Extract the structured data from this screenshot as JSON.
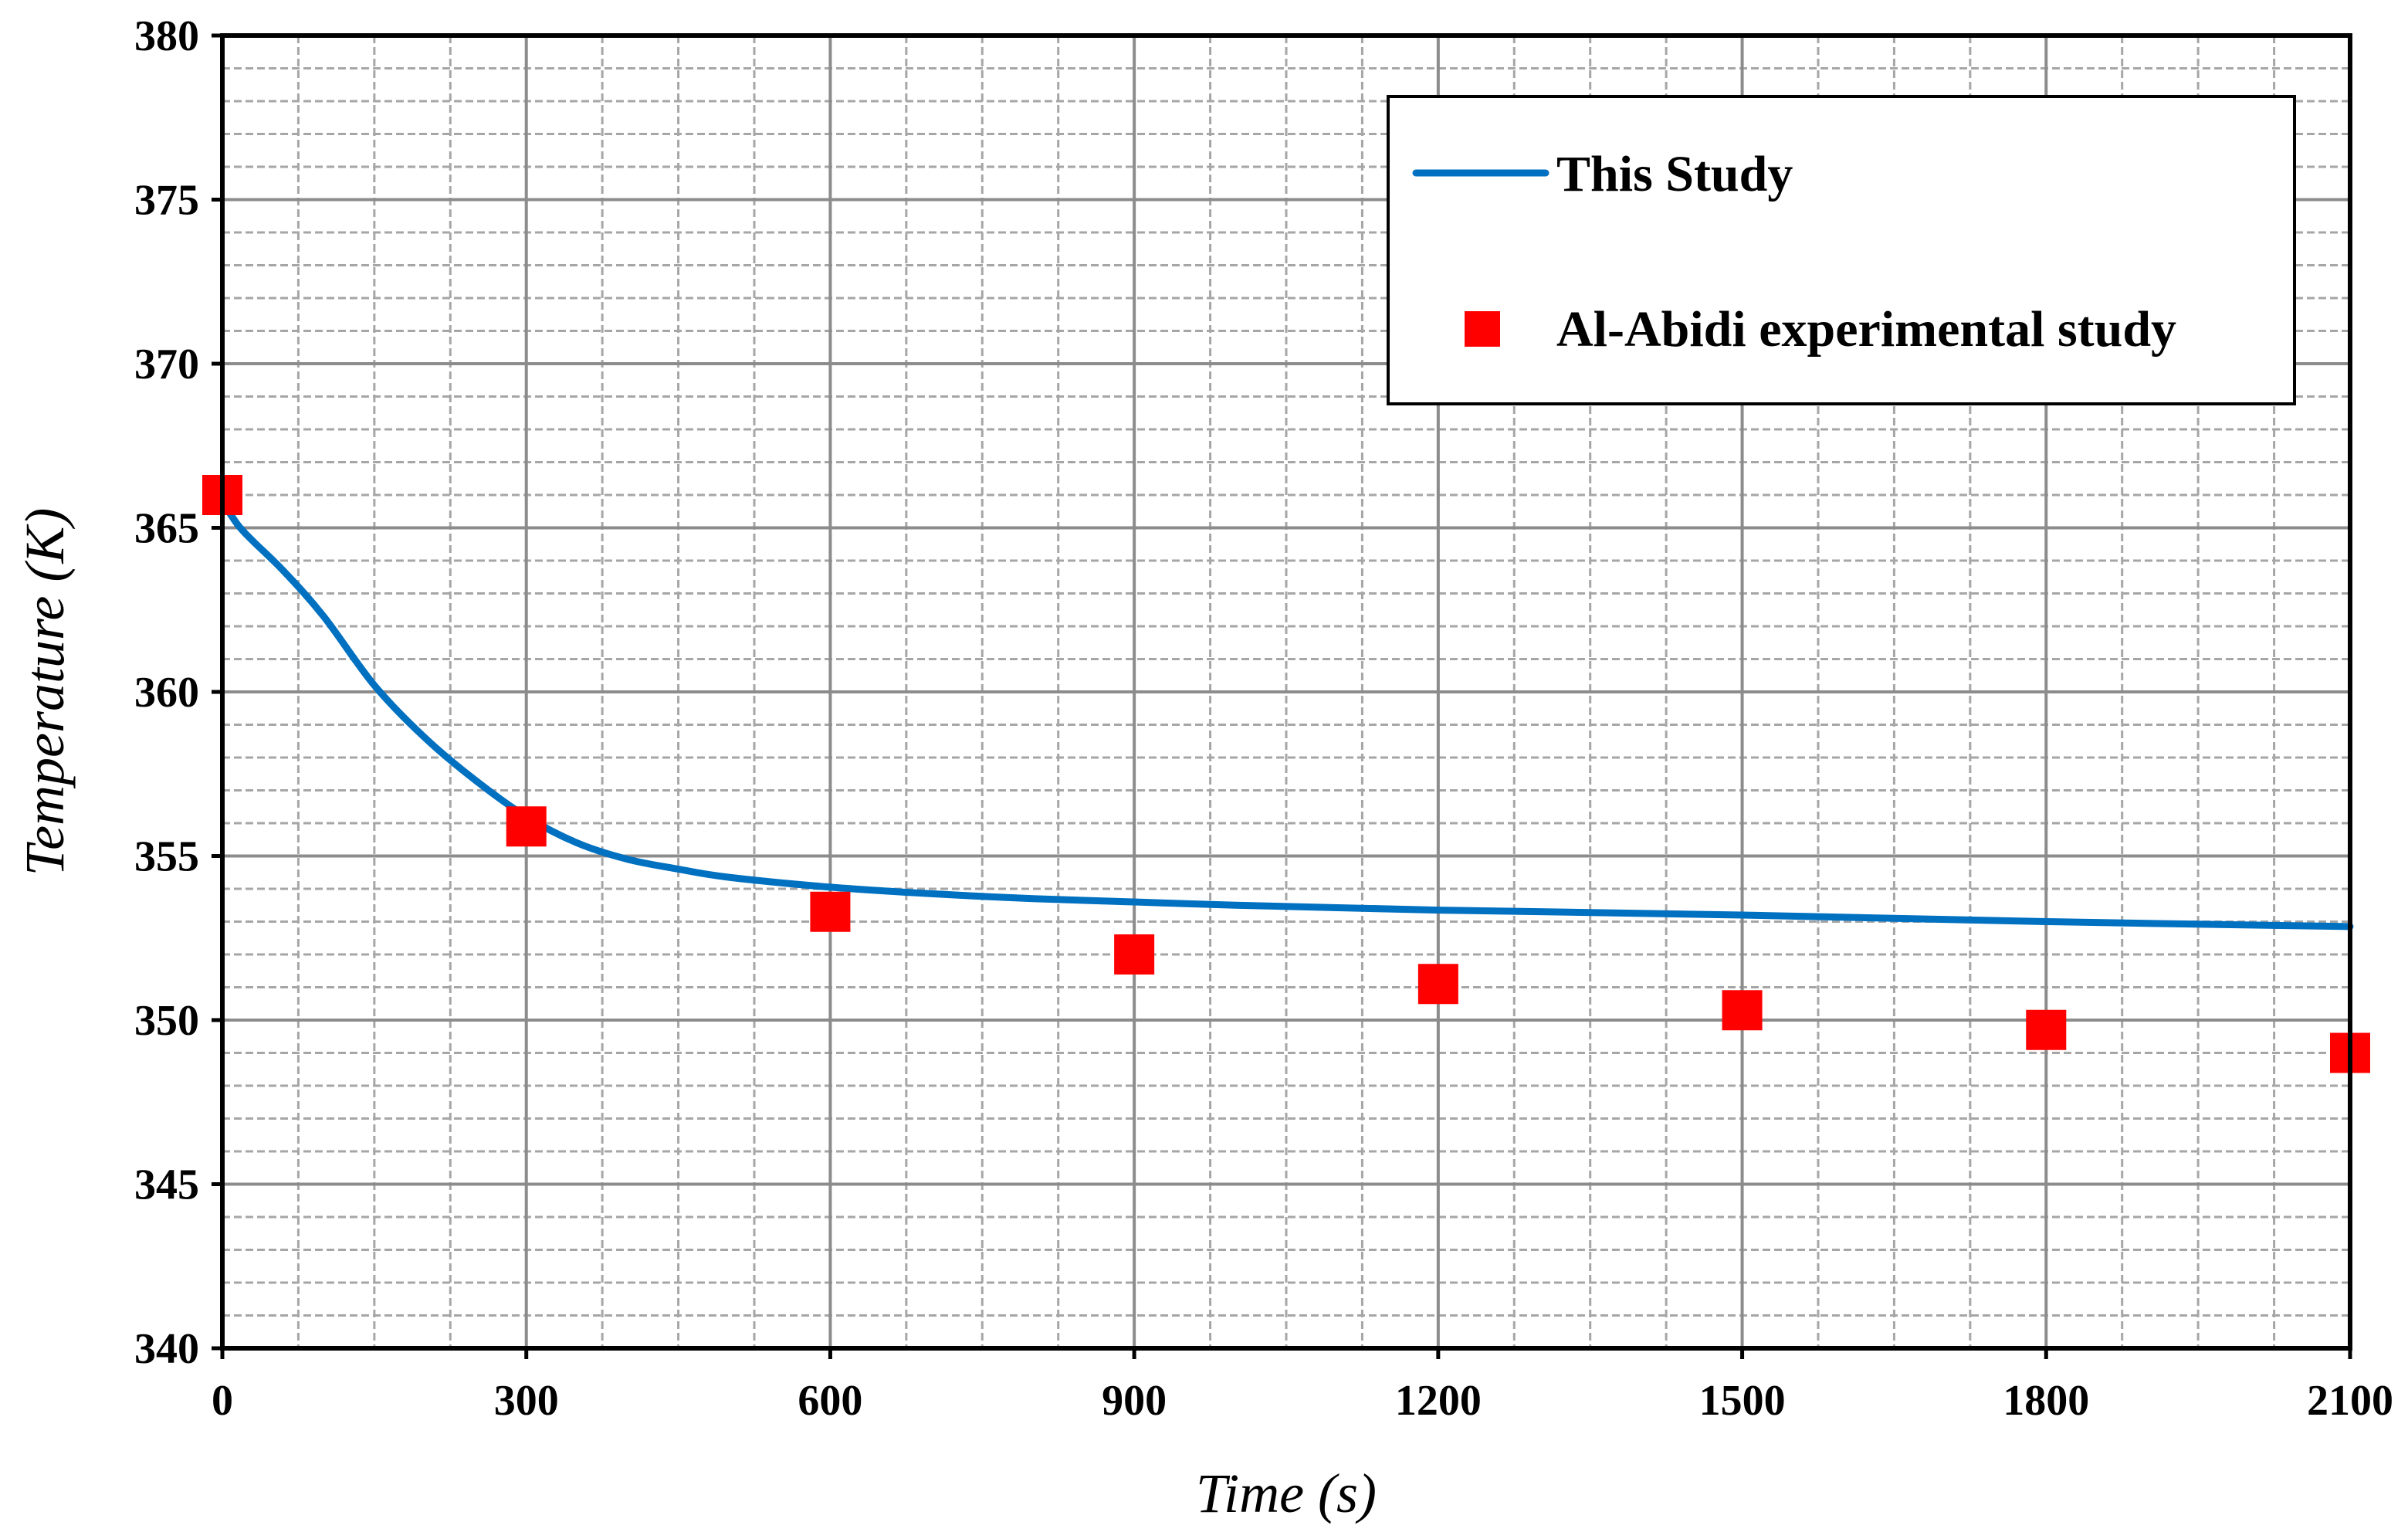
{
  "chart_data": {
    "type": "line",
    "title": "",
    "xlabel": "Time (s)",
    "ylabel": "Temperature (K)",
    "xlim": [
      0,
      2100
    ],
    "ylim": [
      340,
      380
    ],
    "xticks": [
      0,
      300,
      600,
      900,
      1200,
      1500,
      1800,
      2100
    ],
    "yticks": [
      340,
      345,
      350,
      355,
      360,
      365,
      370,
      375,
      380
    ],
    "grid": true,
    "legend_position": "top-right",
    "colors": {
      "line": "#0070c0",
      "marker": "#ff0000",
      "grid": "#a6a6a6"
    },
    "series": [
      {
        "name": "This Study",
        "kind": "line",
        "x": [
          0,
          15,
          30,
          60,
          100,
          150,
          200,
          250,
          300,
          350,
          400,
          450,
          500,
          600,
          700,
          800,
          900,
          1000,
          1200,
          1500,
          1800,
          2100
        ],
        "y": [
          365.8,
          365.1,
          364.6,
          363.7,
          362.3,
          360.2,
          358.6,
          357.3,
          356.2,
          355.4,
          354.9,
          354.6,
          354.35,
          354.05,
          353.85,
          353.7,
          353.6,
          353.5,
          353.35,
          353.2,
          353.0,
          352.85
        ]
      },
      {
        "name": "Al-Abidi experimental study",
        "kind": "scatter",
        "marker": "square",
        "x": [
          0,
          300,
          600,
          900,
          1200,
          1500,
          1800,
          2100
        ],
        "y": [
          366.0,
          355.9,
          353.3,
          352.0,
          351.1,
          350.3,
          349.7,
          349.0
        ]
      }
    ]
  }
}
